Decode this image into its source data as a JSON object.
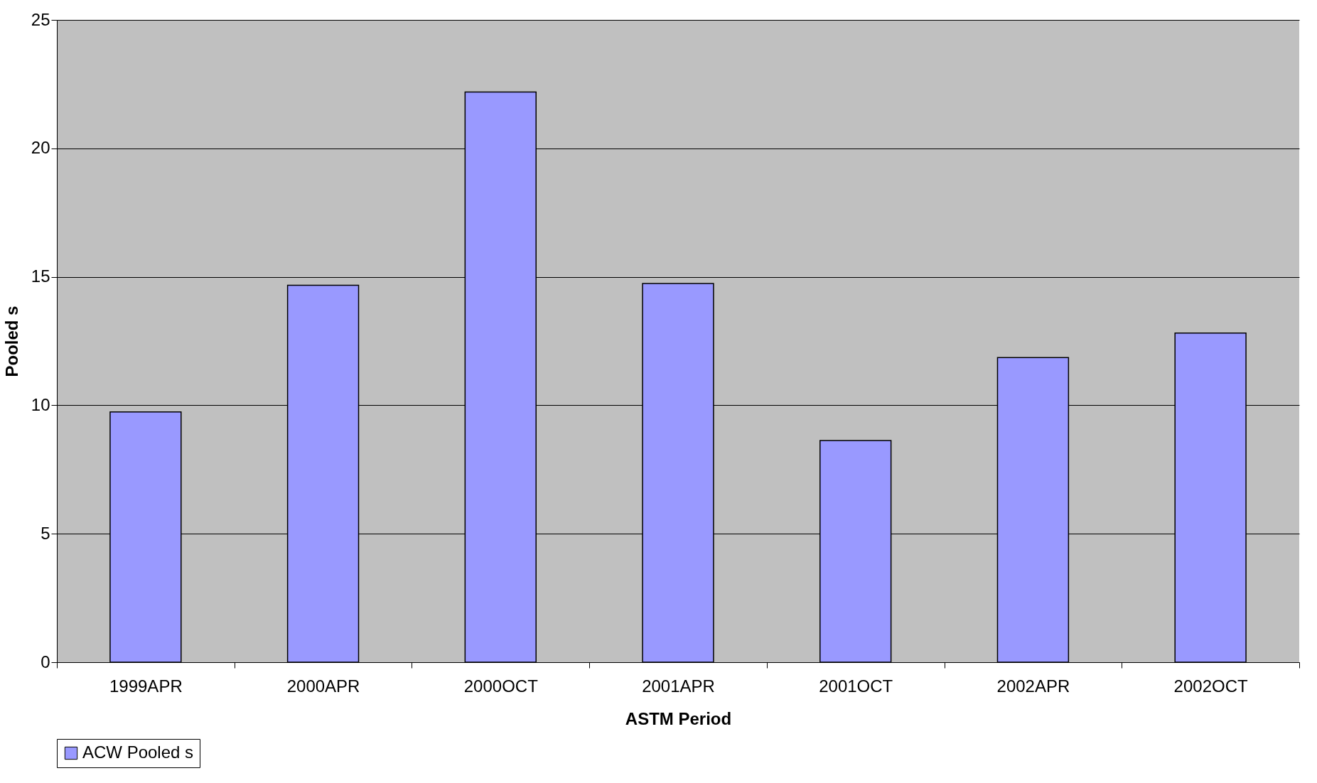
{
  "chart_data": {
    "type": "bar",
    "xlabel": "ASTM Period",
    "ylabel": "Pooled s",
    "categories": [
      "1999APR",
      "2000APR",
      "2000OCT",
      "2001APR",
      "2001OCT",
      "2002APR",
      "2002OCT"
    ],
    "series": [
      {
        "name": "ACW Pooled s",
        "color": "#9999ff",
        "values": [
          9.74,
          14.67,
          22.19,
          14.74,
          8.63,
          11.86,
          12.81
        ]
      }
    ],
    "ylim": [
      0,
      25
    ],
    "yticks": [
      0,
      5,
      10,
      15,
      20,
      25
    ],
    "grid": "y",
    "legend": "bottom"
  }
}
